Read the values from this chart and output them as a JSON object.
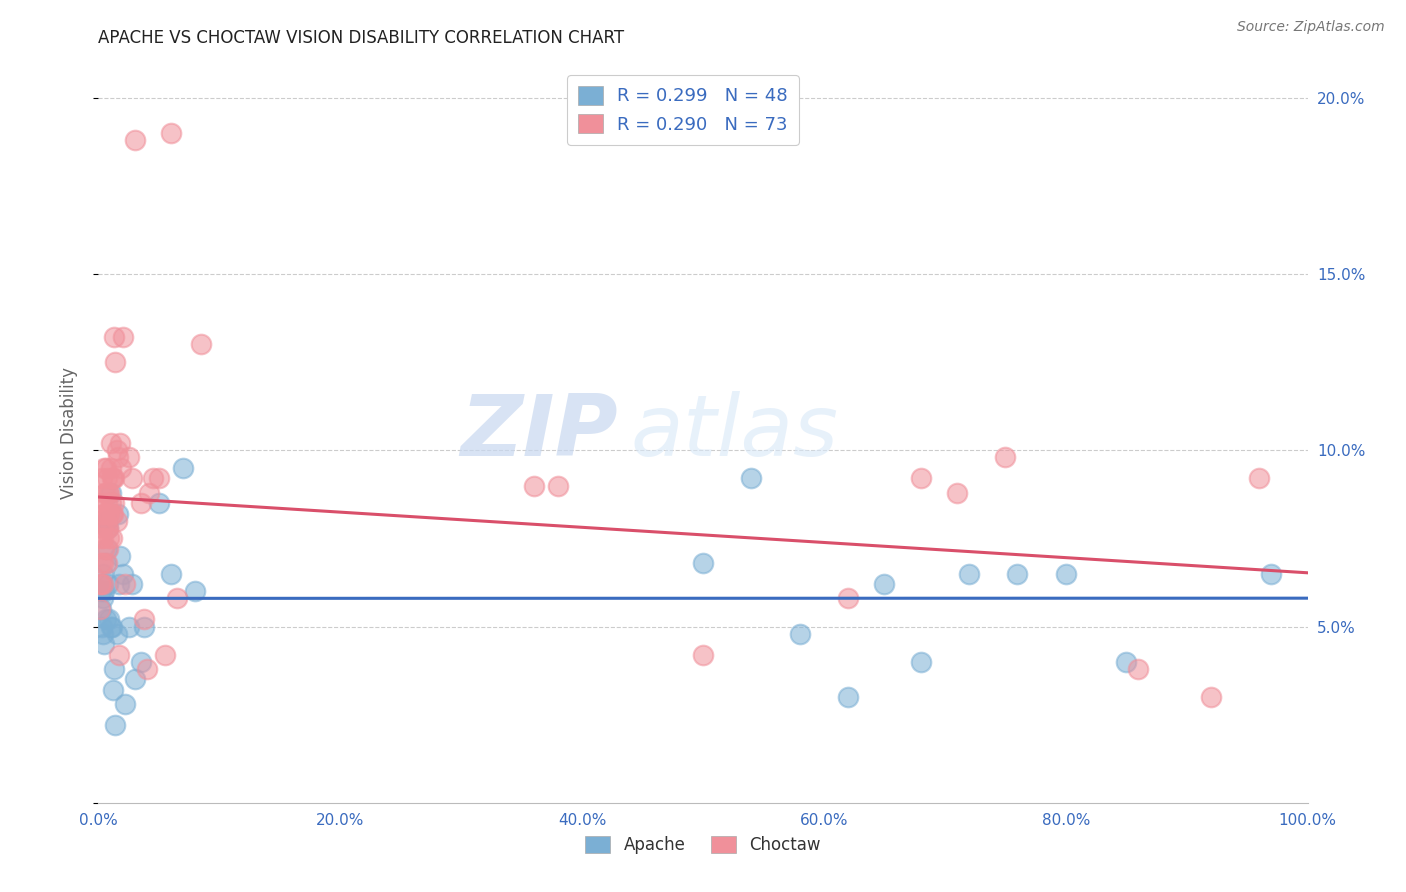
{
  "title": "APACHE VS CHOCTAW VISION DISABILITY CORRELATION CHART",
  "source": "Source: ZipAtlas.com",
  "ylabel": "Vision Disability",
  "xlim": [
    0,
    1.0
  ],
  "ylim": [
    0,
    0.21
  ],
  "apache_color": "#7bafd4",
  "choctaw_color": "#f0909a",
  "apache_line_color": "#3a6bbf",
  "choctaw_line_color": "#d94f6a",
  "apache_R": 0.299,
  "apache_N": 48,
  "choctaw_R": 0.29,
  "choctaw_N": 73,
  "watermark_zip": "ZIP",
  "watermark_atlas": "atlas",
  "apache_x": [
    0.002,
    0.002,
    0.003,
    0.003,
    0.004,
    0.004,
    0.004,
    0.005,
    0.005,
    0.006,
    0.006,
    0.007,
    0.007,
    0.008,
    0.008,
    0.009,
    0.01,
    0.01,
    0.011,
    0.012,
    0.013,
    0.014,
    0.015,
    0.016,
    0.017,
    0.018,
    0.02,
    0.022,
    0.025,
    0.028,
    0.03,
    0.035,
    0.038,
    0.05,
    0.06,
    0.07,
    0.08,
    0.5,
    0.54,
    0.58,
    0.62,
    0.65,
    0.68,
    0.72,
    0.76,
    0.8,
    0.85,
    0.97
  ],
  "apache_y": [
    0.06,
    0.055,
    0.062,
    0.05,
    0.065,
    0.058,
    0.048,
    0.06,
    0.045,
    0.068,
    0.052,
    0.08,
    0.072,
    0.078,
    0.062,
    0.052,
    0.088,
    0.05,
    0.05,
    0.032,
    0.038,
    0.022,
    0.048,
    0.082,
    0.062,
    0.07,
    0.065,
    0.028,
    0.05,
    0.062,
    0.035,
    0.04,
    0.05,
    0.085,
    0.065,
    0.095,
    0.06,
    0.068,
    0.092,
    0.048,
    0.03,
    0.062,
    0.04,
    0.065,
    0.065,
    0.065,
    0.04,
    0.065
  ],
  "choctaw_x": [
    0.001,
    0.001,
    0.002,
    0.002,
    0.002,
    0.003,
    0.003,
    0.003,
    0.004,
    0.004,
    0.004,
    0.004,
    0.005,
    0.005,
    0.005,
    0.005,
    0.006,
    0.006,
    0.006,
    0.007,
    0.007,
    0.007,
    0.007,
    0.008,
    0.008,
    0.008,
    0.008,
    0.009,
    0.009,
    0.009,
    0.01,
    0.01,
    0.01,
    0.011,
    0.011,
    0.011,
    0.012,
    0.012,
    0.013,
    0.013,
    0.013,
    0.014,
    0.015,
    0.015,
    0.016,
    0.017,
    0.018,
    0.019,
    0.02,
    0.022,
    0.025,
    0.028,
    0.03,
    0.035,
    0.038,
    0.04,
    0.042,
    0.045,
    0.05,
    0.055,
    0.06,
    0.065,
    0.085,
    0.36,
    0.38,
    0.5,
    0.62,
    0.68,
    0.71,
    0.75,
    0.86,
    0.92,
    0.96
  ],
  "choctaw_y": [
    0.062,
    0.055,
    0.075,
    0.068,
    0.062,
    0.092,
    0.085,
    0.078,
    0.082,
    0.075,
    0.068,
    0.062,
    0.095,
    0.088,
    0.082,
    0.072,
    0.095,
    0.088,
    0.08,
    0.092,
    0.085,
    0.078,
    0.068,
    0.088,
    0.082,
    0.078,
    0.072,
    0.088,
    0.082,
    0.075,
    0.102,
    0.095,
    0.085,
    0.092,
    0.082,
    0.075,
    0.092,
    0.082,
    0.092,
    0.085,
    0.132,
    0.125,
    0.1,
    0.08,
    0.098,
    0.042,
    0.102,
    0.095,
    0.132,
    0.062,
    0.098,
    0.092,
    0.188,
    0.085,
    0.052,
    0.038,
    0.088,
    0.092,
    0.092,
    0.042,
    0.19,
    0.058,
    0.13,
    0.09,
    0.09,
    0.042,
    0.058,
    0.092,
    0.088,
    0.098,
    0.038,
    0.03,
    0.092
  ]
}
